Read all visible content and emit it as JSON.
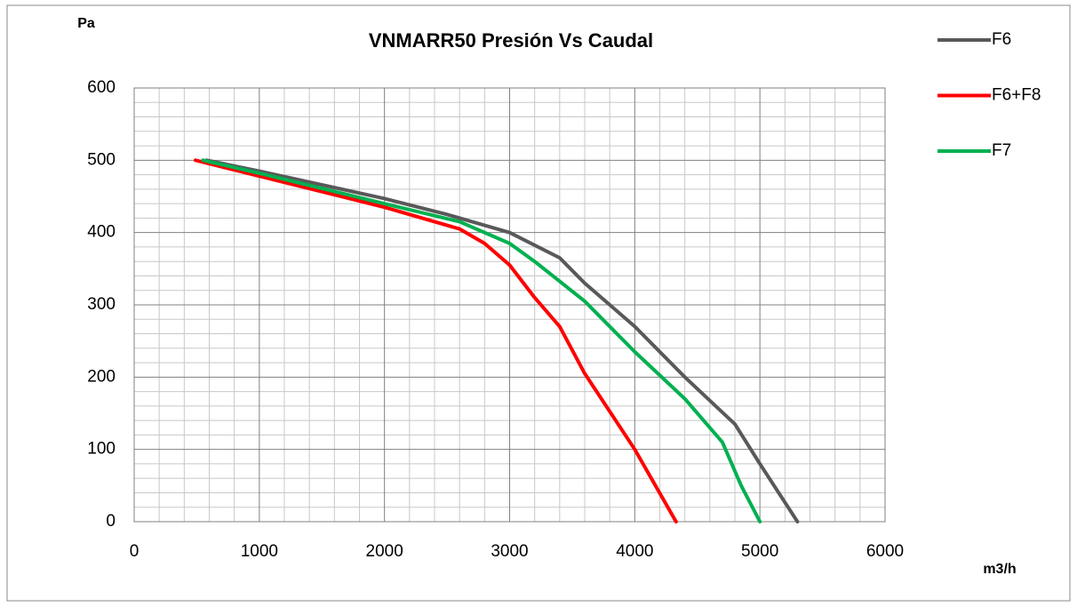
{
  "chart_data": {
    "type": "line",
    "title": "VNMARR50   Presión Vs Caudal",
    "y_label": "Pa",
    "x_label": "m3/h",
    "xlim": [
      0,
      6000
    ],
    "xticks": [
      0,
      1000,
      2000,
      3000,
      4000,
      5000,
      6000
    ],
    "ylim": [
      0,
      600
    ],
    "yticks": [
      0,
      100,
      200,
      300,
      400,
      500,
      600
    ],
    "grid": true,
    "minor_grid": true,
    "legend": "right",
    "series": [
      {
        "name": "F6",
        "color": "#595959",
        "x": [
          580,
          1000,
          2000,
          2500,
          3000,
          3400,
          3600,
          4000,
          4400,
          4800,
          5000,
          5300
        ],
        "values": [
          500,
          485,
          447,
          425,
          400,
          365,
          330,
          270,
          200,
          135,
          80,
          0
        ]
      },
      {
        "name": "F6+F8",
        "color": "#ff0000",
        "x": [
          490,
          1000,
          2000,
          2600,
          2800,
          3000,
          3200,
          3400,
          3600,
          4000,
          4330
        ],
        "values": [
          500,
          478,
          435,
          405,
          385,
          355,
          310,
          270,
          205,
          100,
          0
        ]
      },
      {
        "name": "F7",
        "color": "#00b050",
        "x": [
          550,
          1000,
          2000,
          2600,
          3000,
          3200,
          3600,
          4000,
          4400,
          4700,
          4850,
          5000
        ],
        "values": [
          500,
          482,
          440,
          415,
          385,
          360,
          305,
          235,
          170,
          110,
          50,
          0
        ]
      }
    ]
  }
}
